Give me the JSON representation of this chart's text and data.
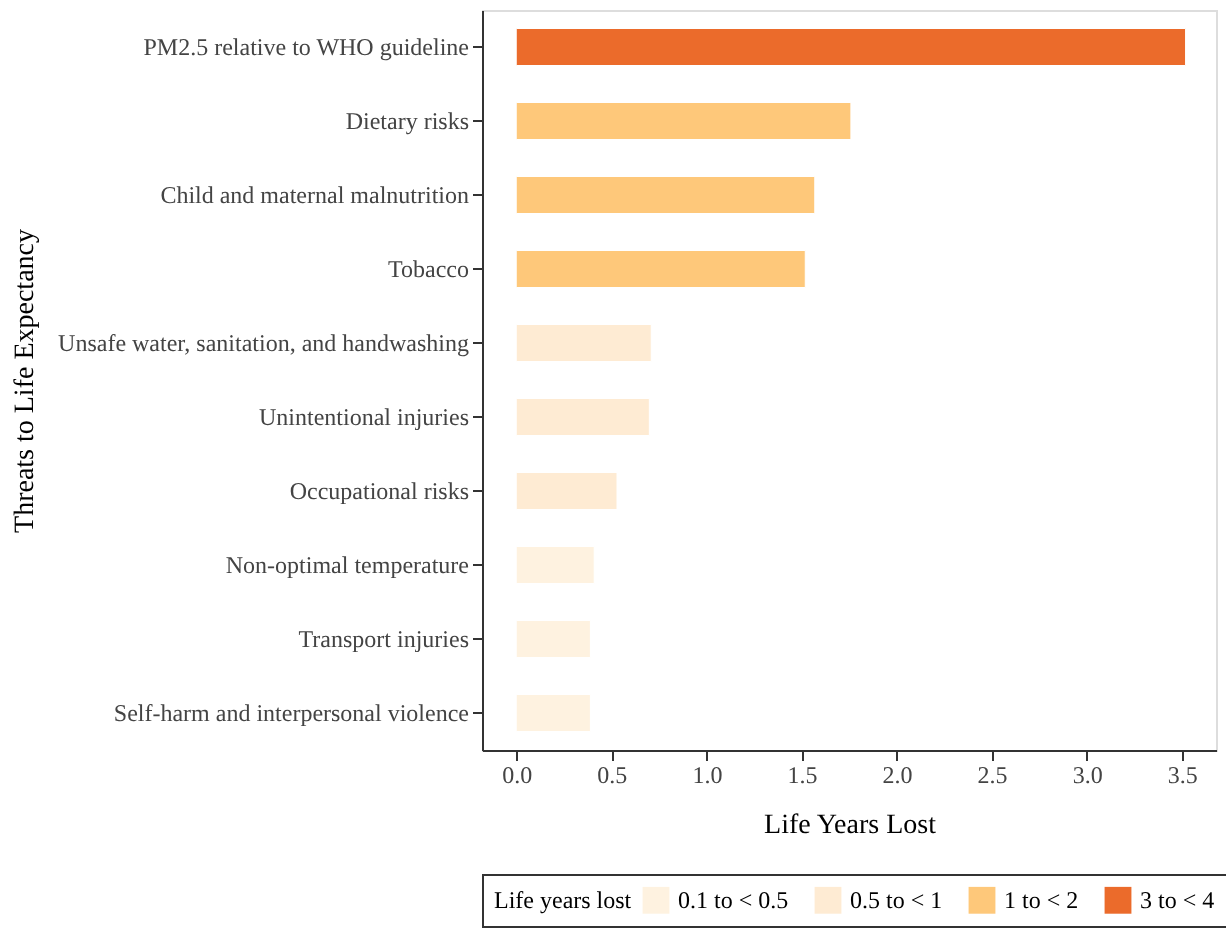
{
  "chart_data": {
    "type": "bar",
    "orientation": "horizontal",
    "categories": [
      "PM2.5 relative to WHO guideline",
      "Dietary risks",
      "Child and maternal malnutrition",
      "Tobacco",
      "Unsafe water, sanitation, and handwashing",
      "Unintentional injuries",
      "Occupational risks",
      "Non-optimal temperature",
      "Transport injuries",
      "Self-harm and interpersonal violence"
    ],
    "series": [
      {
        "name": "0.1 to < 0.5",
        "color": "#fef2e0",
        "values": [
          null,
          null,
          null,
          null,
          null,
          null,
          null,
          0.41,
          0.39,
          0.39
        ]
      },
      {
        "name": "0.5 to < 1",
        "color": "#feebd3",
        "values": [
          null,
          null,
          null,
          null,
          0.71,
          0.7,
          0.53,
          null,
          null,
          null
        ]
      },
      {
        "name": "1 to < 2",
        "color": "#fec87a",
        "values": [
          null,
          1.76,
          1.57,
          1.52,
          null,
          null,
          null,
          null,
          null,
          null
        ]
      },
      {
        "name": "3 to < 4",
        "color": "#eb6b2b",
        "values": [
          3.52,
          null,
          null,
          null,
          null,
          null,
          null,
          null,
          null,
          null
        ]
      }
    ],
    "xlabel": "Life Years Lost",
    "ylabel": "Threats to Life Expectancy",
    "legend_title": "Life years lost",
    "xlim": [
      -0.18,
      3.68
    ],
    "xticks": [
      {
        "value": 0,
        "label": "0.0"
      },
      0.5,
      {
        "value": 1,
        "label": "1.0"
      },
      1.5,
      {
        "value": 2,
        "label": "2.0"
      },
      2.5,
      {
        "value": 3,
        "label": "3.0"
      },
      3.5
    ],
    "grid": false,
    "legend": "bottom"
  }
}
